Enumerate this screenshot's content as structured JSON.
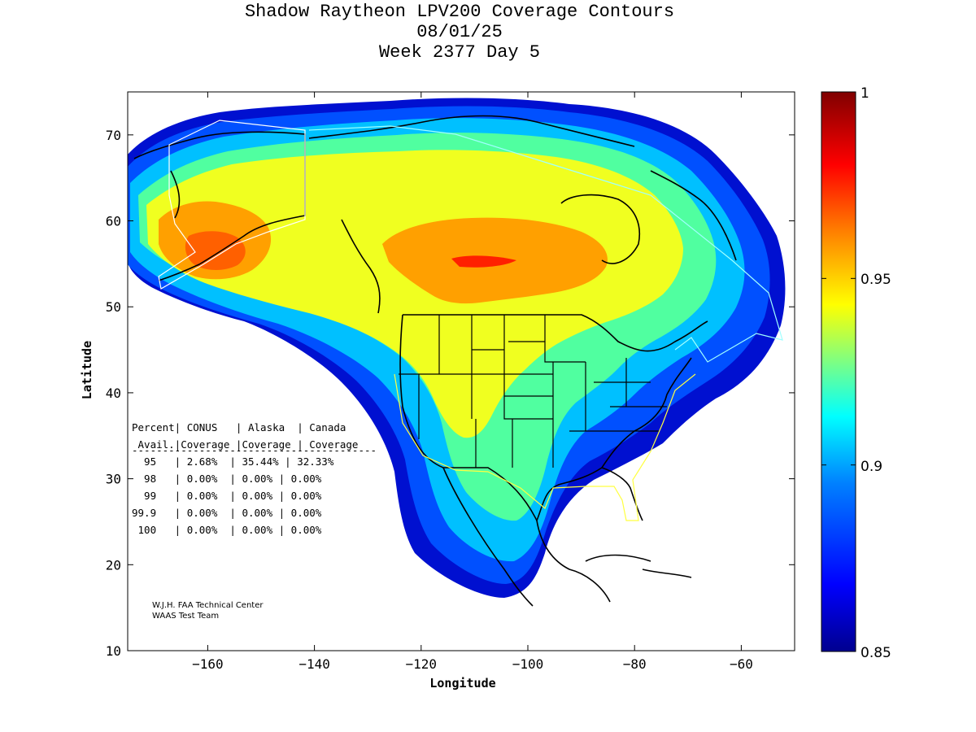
{
  "title": {
    "line1": "Shadow Raytheon LPV200 Coverage Contours",
    "line2": "08/01/25",
    "line3": "Week 2377 Day 5"
  },
  "axes": {
    "xlabel": "Longitude",
    "ylabel": "Latitude",
    "xlim": [
      -175,
      -50
    ],
    "ylim": [
      10,
      75
    ],
    "xticks": [
      -160,
      -140,
      -120,
      -100,
      -80,
      -60
    ],
    "yticks": [
      10,
      20,
      30,
      40,
      50,
      60,
      70
    ]
  },
  "colorbar": {
    "min": 0.85,
    "max": 1,
    "labels": [
      "1",
      "0.95",
      "0.9",
      "0.85"
    ],
    "colors": [
      "#00008f",
      "#0000ff",
      "#0080ff",
      "#00ffff",
      "#80ff80",
      "#ffff00",
      "#ff8000",
      "#ff0000",
      "#800000"
    ]
  },
  "table": {
    "header1": "Percent| CONUS   | Alaska  | Canada",
    "header2": " Avail.|Coverage |Coverage | Coverage",
    "separator": "----------------------------------------",
    "rows": [
      "  95   | 2.68%  | 35.44% | 32.33%",
      "  98   | 0.00%  | 0.00% | 0.00%",
      "  99   | 0.00%  | 0.00% | 0.00%",
      "99.9   | 0.00%  | 0.00% | 0.00%",
      " 100   | 0.00%  | 0.00% | 0.00%"
    ]
  },
  "credit": {
    "line1": "W.J.H. FAA Technical Center",
    "line2": "WAAS Test Team"
  }
}
